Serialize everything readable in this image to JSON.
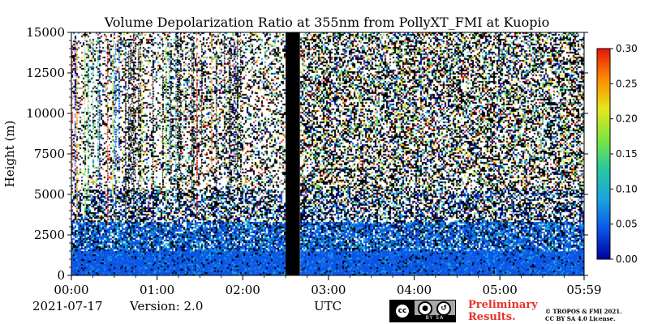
{
  "chart_data": {
    "type": "heatmap",
    "title": "Volume Depolarization Ratio at 355nm from PollyXT_FMI at Kuopio",
    "ylabel": "Height (m)",
    "xlabel": "UTC",
    "ylim": [
      0,
      15000
    ],
    "xlim": [
      "00:00",
      "05:59"
    ],
    "yticks": [
      "0",
      "2500",
      "5000",
      "7500",
      "10000",
      "12500",
      "15000"
    ],
    "xticks": [
      "00:00",
      "01:00",
      "02:00",
      "03:00",
      "04:00",
      "05:00",
      "05:59"
    ],
    "colorbar": {
      "range": [
        0.0,
        0.3
      ],
      "ticks": [
        "0.00",
        "0.05",
        "0.10",
        "0.15",
        "0.20",
        "0.25",
        "0.30"
      ],
      "colors": [
        "#0000a0",
        "#0a55e6",
        "#1aa5e0",
        "#28c8a0",
        "#7fe640",
        "#e6e61a",
        "#ff8a00",
        "#e8140c"
      ]
    },
    "no_data_gap": [
      "02:30",
      "02:40"
    ],
    "grid": false
  },
  "footer": {
    "date": "2021-07-17",
    "version": "Version: 2.0",
    "time_label": "UTC",
    "preliminary_line1": "Preliminary",
    "preliminary_line2": "Results.",
    "copyright_line1": "© TROPOS & FMI 2021.",
    "copyright_line2": "CC BY SA 4.0 License."
  },
  "license_badge": {
    "cc": "cc",
    "by": "BY",
    "sa": "SA"
  }
}
